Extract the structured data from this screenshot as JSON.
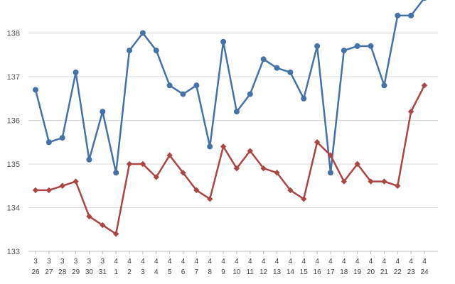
{
  "chart_data": {
    "type": "line",
    "title": "",
    "xlabel": "",
    "ylabel": "",
    "ylim": [
      133,
      138.6
    ],
    "yticks": [
      133,
      134,
      135,
      136,
      137,
      138
    ],
    "grid": true,
    "legend": "none",
    "categories": [
      {
        "month": "3",
        "day": "26"
      },
      {
        "month": "3",
        "day": "27"
      },
      {
        "month": "3",
        "day": "28"
      },
      {
        "month": "3",
        "day": "29"
      },
      {
        "month": "3",
        "day": "30"
      },
      {
        "month": "3",
        "day": "31"
      },
      {
        "month": "4",
        "day": "1"
      },
      {
        "month": "4",
        "day": "2"
      },
      {
        "month": "4",
        "day": "3"
      },
      {
        "month": "4",
        "day": "4"
      },
      {
        "month": "4",
        "day": "5"
      },
      {
        "month": "4",
        "day": "6"
      },
      {
        "month": "4",
        "day": "7"
      },
      {
        "month": "4",
        "day": "8"
      },
      {
        "month": "4",
        "day": "9"
      },
      {
        "month": "4",
        "day": "10"
      },
      {
        "month": "4",
        "day": "11"
      },
      {
        "month": "4",
        "day": "12"
      },
      {
        "month": "4",
        "day": "13"
      },
      {
        "month": "4",
        "day": "14"
      },
      {
        "month": "4",
        "day": "15"
      },
      {
        "month": "4",
        "day": "16"
      },
      {
        "month": "4",
        "day": "17"
      },
      {
        "month": "4",
        "day": "18"
      },
      {
        "month": "4",
        "day": "19"
      },
      {
        "month": "4",
        "day": "20"
      },
      {
        "month": "4",
        "day": "21"
      },
      {
        "month": "4",
        "day": "22"
      },
      {
        "month": "4",
        "day": "23"
      },
      {
        "month": "4",
        "day": "24"
      }
    ],
    "series": [
      {
        "color": "#4572a7",
        "marker": "circle",
        "values": [
          136.7,
          135.5,
          135.6,
          137.1,
          135.1,
          136.2,
          134.8,
          137.6,
          138.0,
          137.6,
          136.8,
          136.6,
          136.8,
          135.4,
          137.8,
          136.2,
          136.6,
          137.4,
          137.2,
          137.1,
          136.5,
          137.7,
          134.8,
          137.6,
          137.7,
          137.7,
          136.8,
          138.4,
          138.4,
          138.8
        ]
      },
      {
        "color": "#aa4643",
        "marker": "diamond",
        "values": [
          134.4,
          134.4,
          134.5,
          134.6,
          133.8,
          133.6,
          133.4,
          135.0,
          135.0,
          134.7,
          135.2,
          134.8,
          134.4,
          134.2,
          135.4,
          134.9,
          135.3,
          134.9,
          134.8,
          134.4,
          134.2,
          135.5,
          135.2,
          134.6,
          135.0,
          134.6,
          134.6,
          134.5,
          136.2,
          136.8
        ]
      }
    ]
  }
}
